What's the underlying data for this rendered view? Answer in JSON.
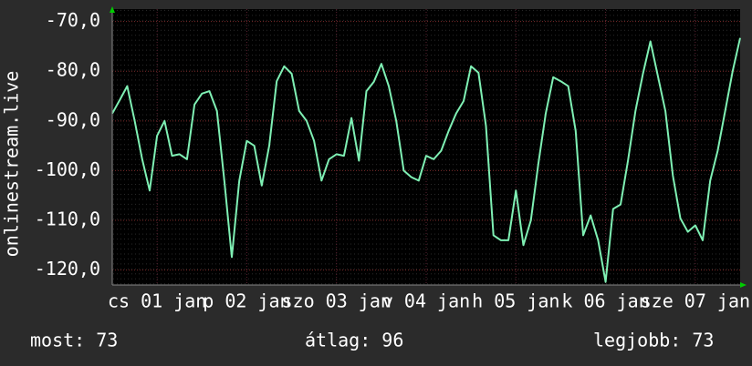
{
  "chart_data": {
    "type": "line",
    "ylabel": "onlinestream.live",
    "x": [
      0,
      2,
      4,
      6,
      8,
      10,
      12,
      14,
      16,
      18,
      20,
      22,
      24,
      26,
      28,
      30,
      32,
      34,
      36,
      38,
      40,
      42,
      44,
      46,
      48,
      50,
      52,
      54,
      56,
      58,
      60,
      62,
      64,
      66,
      68,
      70,
      72,
      74,
      76,
      78,
      80,
      82,
      84,
      86,
      88,
      90,
      92,
      94,
      96,
      98,
      100,
      102,
      104,
      106,
      108,
      110,
      112,
      114,
      116,
      118,
      120,
      122,
      124,
      126,
      128,
      130,
      132,
      134,
      136,
      138,
      140,
      142,
      144,
      146,
      148,
      150,
      152,
      154,
      156,
      158,
      160,
      162,
      164,
      166,
      168
    ],
    "series": [
      {
        "color": "#7ff0b4",
        "values": [
          -88.5,
          -85.8,
          -83,
          -90,
          -97.7,
          -104,
          -93,
          -90,
          -97,
          -96.7,
          -97.7,
          -86.7,
          -84.5,
          -84,
          -88,
          -102.2,
          -117.4,
          -102,
          -94,
          -95,
          -103,
          -95,
          -82,
          -79,
          -80.5,
          -88,
          -90,
          -94,
          -102,
          -97.7,
          -96.7,
          -97,
          -89.4,
          -98,
          -84,
          -82.1,
          -78.5,
          -83,
          -90,
          -100,
          -101.3,
          -102,
          -97,
          -97.7,
          -96,
          -92,
          -88.5,
          -86,
          -79,
          -80.3,
          -91,
          -113,
          -114,
          -114,
          -104,
          -115,
          -110,
          -98.6,
          -88.5,
          -81.2,
          -82,
          -83,
          -92,
          -113,
          -109,
          -114,
          -122.4,
          -107.7,
          -106.8,
          -98,
          -88,
          -80.5,
          -74,
          -81,
          -88,
          -101,
          -109.6,
          -112.3,
          -111,
          -114,
          -102,
          -96,
          -88,
          -80,
          -73.3
        ]
      }
    ],
    "xlim": [
      0,
      168
    ],
    "xticks": [
      {
        "value": 12,
        "label": "cs 01 jan"
      },
      {
        "value": 36,
        "label": "p 02 jan"
      },
      {
        "value": 60,
        "label": "szo 03 jan"
      },
      {
        "value": 84,
        "label": "v 04 jan"
      },
      {
        "value": 108,
        "label": "h 05 jan"
      },
      {
        "value": 132,
        "label": "k 06 jan"
      },
      {
        "value": 156,
        "label": "sze 07 jan"
      }
    ],
    "ylim": [
      -123,
      -67.5
    ],
    "yticks": [
      {
        "value": -70,
        "label": "-70,0"
      },
      {
        "value": -80,
        "label": "-80,0"
      },
      {
        "value": -90,
        "label": "-90,0"
      },
      {
        "value": -100,
        "label": "-100,0"
      },
      {
        "value": -110,
        "label": "-110,0"
      },
      {
        "value": -120,
        "label": "-120,0"
      }
    ],
    "grid": true
  },
  "footer": [
    "most: 73",
    "átlag: 96",
    "legjobb: 73"
  ]
}
